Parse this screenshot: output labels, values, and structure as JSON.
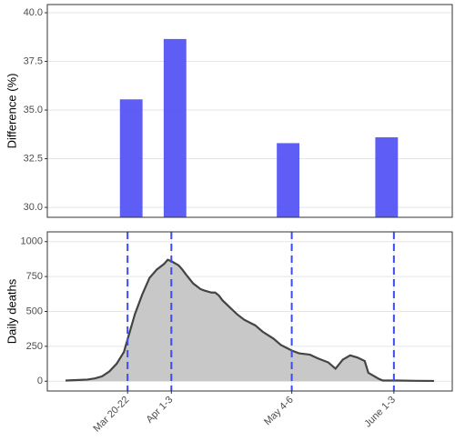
{
  "chart_data": [
    {
      "type": "bar",
      "y_label": "Difference (%)",
      "x": [
        82,
        94,
        125,
        152
      ],
      "values": [
        35.55,
        38.65,
        33.3,
        33.6
      ],
      "color": "#4d4df5",
      "xlim": [
        59,
        170
      ],
      "ylim": [
        29.49,
        40.42
      ],
      "yticks": [
        {
          "value": 30,
          "label": "30.0"
        },
        32.5,
        {
          "value": 35,
          "label": "35.0"
        },
        37.5,
        {
          "value": 40,
          "label": "40.0"
        }
      ],
      "grid": true
    },
    {
      "type": "area",
      "y_label": "Daily deaths",
      "x": [
        64,
        67,
        70,
        72,
        74,
        76,
        78,
        80,
        81,
        83,
        85,
        87,
        89,
        91,
        92,
        93,
        95,
        96,
        97,
        99,
        100,
        101,
        102,
        104,
        105,
        106,
        107,
        109,
        110,
        111,
        113,
        116,
        118,
        121,
        123,
        126,
        128,
        131,
        133,
        136,
        138,
        140,
        141,
        142,
        144,
        146,
        147,
        148,
        150,
        151,
        155,
        160,
        165
      ],
      "values": [
        5,
        8,
        12,
        20,
        35,
        70,
        125,
        210,
        300,
        480,
        620,
        740,
        800,
        840,
        870,
        860,
        830,
        800,
        765,
        700,
        680,
        660,
        650,
        635,
        635,
        615,
        580,
        530,
        505,
        480,
        440,
        400,
        355,
        305,
        260,
        220,
        200,
        190,
        165,
        135,
        90,
        155,
        170,
        185,
        170,
        145,
        60,
        45,
        15,
        5,
        5,
        3,
        2
      ],
      "color": "#444444",
      "fill": "#c8c8c8",
      "vline_color": "#3b4ee6",
      "xlim": [
        59,
        170
      ],
      "ylim": [
        -70,
        1070
      ],
      "xticks": [
        {
          "value": 81,
          "label": "Mar 20-22"
        },
        {
          "value": 93,
          "label": "Apr 1-3"
        },
        {
          "value": 126,
          "label": "May 4-6"
        },
        {
          "value": 154,
          "label": "June 1-3"
        }
      ],
      "yticks": [
        0,
        250,
        500,
        750,
        1000
      ],
      "grid": true
    }
  ]
}
